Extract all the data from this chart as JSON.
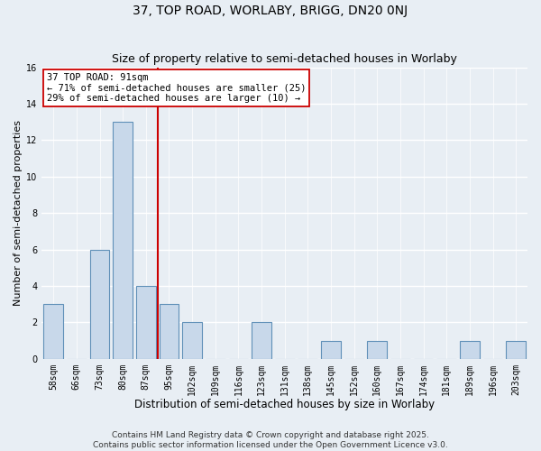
{
  "title": "37, TOP ROAD, WORLABY, BRIGG, DN20 0NJ",
  "subtitle": "Size of property relative to semi-detached houses in Worlaby",
  "xlabel": "Distribution of semi-detached houses by size in Worlaby",
  "ylabel": "Number of semi-detached properties",
  "bar_labels": [
    "58sqm",
    "66sqm",
    "73sqm",
    "80sqm",
    "87sqm",
    "95sqm",
    "102sqm",
    "109sqm",
    "116sqm",
    "123sqm",
    "131sqm",
    "138sqm",
    "145sqm",
    "152sqm",
    "160sqm",
    "167sqm",
    "174sqm",
    "181sqm",
    "189sqm",
    "196sqm",
    "203sqm"
  ],
  "bar_values": [
    3,
    0,
    6,
    13,
    4,
    3,
    2,
    0,
    0,
    2,
    0,
    0,
    1,
    0,
    1,
    0,
    0,
    0,
    1,
    0,
    1
  ],
  "bar_color": "#c8d8ea",
  "bar_edge_color": "#6090b8",
  "vline_x": 4.5,
  "vline_color": "#cc0000",
  "annotation_title": "37 TOP ROAD: 91sqm",
  "annotation_line1": "← 71% of semi-detached houses are smaller (25)",
  "annotation_line2": "29% of semi-detached houses are larger (10) →",
  "annotation_box_color": "#ffffff",
  "annotation_box_edge": "#cc0000",
  "ylim": [
    0,
    16
  ],
  "yticks": [
    0,
    2,
    4,
    6,
    8,
    10,
    12,
    14,
    16
  ],
  "background_color": "#e8eef4",
  "plot_background": "#e8eef4",
  "grid_color": "#ffffff",
  "footer_line1": "Contains HM Land Registry data © Crown copyright and database right 2025.",
  "footer_line2": "Contains public sector information licensed under the Open Government Licence v3.0.",
  "title_fontsize": 10,
  "subtitle_fontsize": 9,
  "xlabel_fontsize": 8.5,
  "ylabel_fontsize": 8,
  "tick_fontsize": 7,
  "footer_fontsize": 6.5,
  "ann_fontsize": 7.5
}
